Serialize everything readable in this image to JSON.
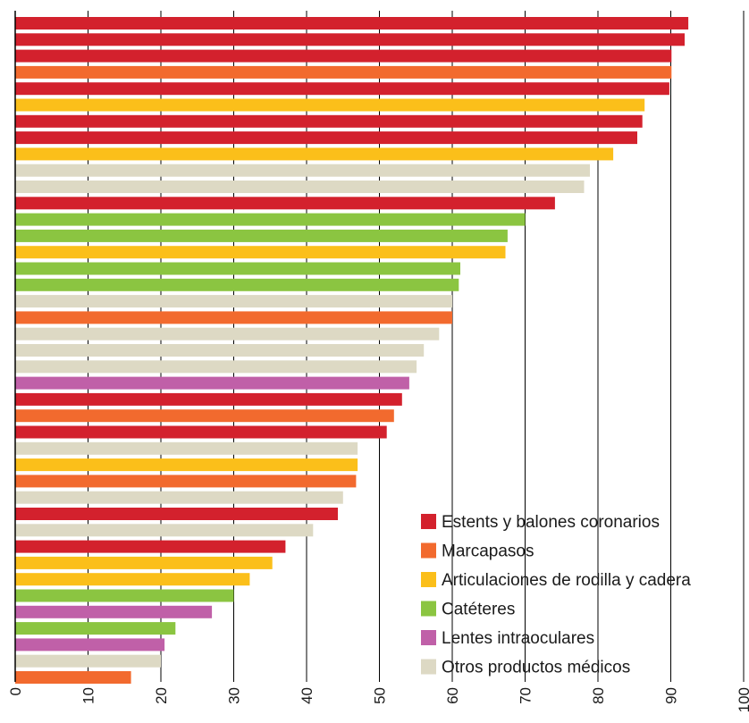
{
  "colors": {
    "estents": "#d3212d",
    "marcapasos": "#f26a2e",
    "articulaciones": "#fbbf1a",
    "cateteres": "#8bc541",
    "lentes": "#c060a8",
    "otros": "#ddd9c4",
    "gridline": "#000000",
    "axis": "#000000"
  },
  "chart_data": {
    "type": "bar",
    "orientation": "horizontal",
    "xlim": [
      0,
      100
    ],
    "x_ticks": [
      "0",
      "10",
      "20",
      "30",
      "40",
      "50",
      "60",
      "70",
      "80",
      "90",
      "100"
    ],
    "grid": "vertical",
    "legend_position": "bottom-right",
    "legend": [
      {
        "key": "estents",
        "label": "Estents y balones coronarios"
      },
      {
        "key": "marcapasos",
        "label": "Marcapasos"
      },
      {
        "key": "articulaciones",
        "label": "Articulaciones de rodilla y cadera"
      },
      {
        "key": "cateteres",
        "label": "Catéteres"
      },
      {
        "key": "lentes",
        "label": "Lentes intraoculares"
      },
      {
        "key": "otros",
        "label": "Otros productos médicos"
      }
    ],
    "bars": [
      {
        "value": 92.4,
        "group": "estents"
      },
      {
        "value": 91.9,
        "group": "estents"
      },
      {
        "value": 90.1,
        "group": "estents"
      },
      {
        "value": 90.1,
        "group": "marcapasos"
      },
      {
        "value": 89.8,
        "group": "estents"
      },
      {
        "value": 86.4,
        "group": "articulaciones"
      },
      {
        "value": 86.1,
        "group": "estents"
      },
      {
        "value": 85.4,
        "group": "estents"
      },
      {
        "value": 82.1,
        "group": "articulaciones"
      },
      {
        "value": 78.9,
        "group": "otros"
      },
      {
        "value": 78.1,
        "group": "otros"
      },
      {
        "value": 74.1,
        "group": "estents"
      },
      {
        "value": 70.0,
        "group": "cateteres"
      },
      {
        "value": 67.6,
        "group": "cateteres"
      },
      {
        "value": 67.3,
        "group": "articulaciones"
      },
      {
        "value": 61.1,
        "group": "cateteres"
      },
      {
        "value": 60.9,
        "group": "cateteres"
      },
      {
        "value": 60.0,
        "group": "otros"
      },
      {
        "value": 60.0,
        "group": "marcapasos"
      },
      {
        "value": 58.2,
        "group": "otros"
      },
      {
        "value": 56.1,
        "group": "otros"
      },
      {
        "value": 55.1,
        "group": "otros"
      },
      {
        "value": 54.1,
        "group": "lentes"
      },
      {
        "value": 53.1,
        "group": "estents"
      },
      {
        "value": 52.0,
        "group": "marcapasos"
      },
      {
        "value": 51.0,
        "group": "estents"
      },
      {
        "value": 47.0,
        "group": "otros"
      },
      {
        "value": 47.0,
        "group": "articulaciones"
      },
      {
        "value": 46.8,
        "group": "marcapasos"
      },
      {
        "value": 45.0,
        "group": "otros"
      },
      {
        "value": 44.3,
        "group": "estents"
      },
      {
        "value": 40.9,
        "group": "otros"
      },
      {
        "value": 37.1,
        "group": "estents"
      },
      {
        "value": 35.3,
        "group": "articulaciones"
      },
      {
        "value": 32.2,
        "group": "articulaciones"
      },
      {
        "value": 30.0,
        "group": "cateteres"
      },
      {
        "value": 27.0,
        "group": "lentes"
      },
      {
        "value": 22.0,
        "group": "cateteres"
      },
      {
        "value": 20.5,
        "group": "lentes"
      },
      {
        "value": 20.0,
        "group": "otros"
      },
      {
        "value": 15.9,
        "group": "marcapasos"
      }
    ]
  }
}
